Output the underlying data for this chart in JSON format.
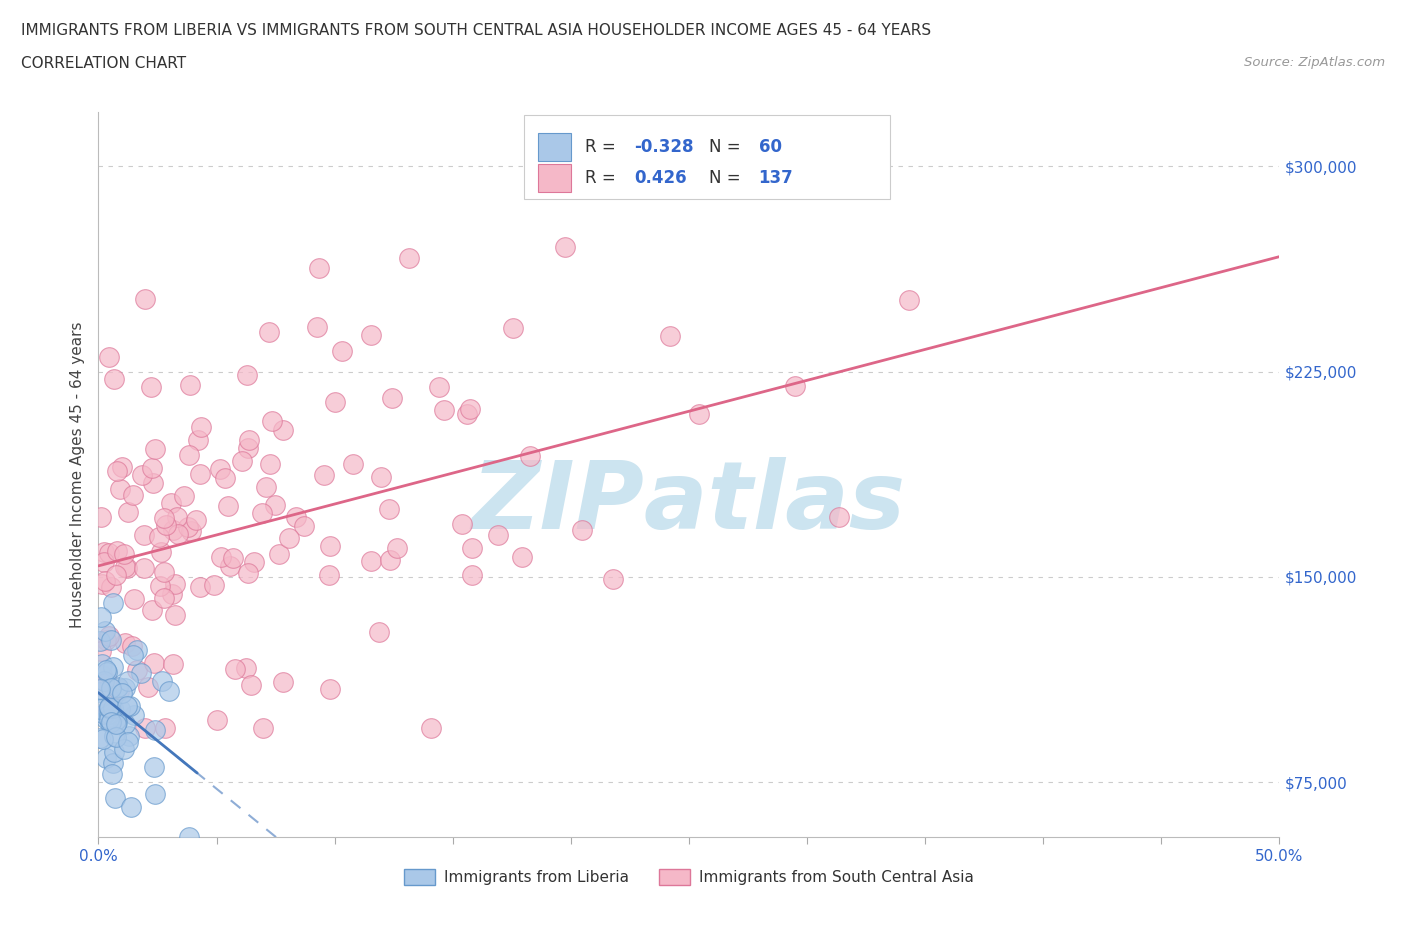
{
  "title_line1": "IMMIGRANTS FROM LIBERIA VS IMMIGRANTS FROM SOUTH CENTRAL ASIA HOUSEHOLDER INCOME AGES 45 - 64 YEARS",
  "title_line2": "CORRELATION CHART",
  "source_text": "Source: ZipAtlas.com",
  "ylabel": "Householder Income Ages 45 - 64 years",
  "xlim": [
    0.0,
    0.5
  ],
  "ylim": [
    55000,
    320000
  ],
  "yticks": [
    75000,
    150000,
    225000,
    300000
  ],
  "ytick_labels": [
    "$75,000",
    "$150,000",
    "$225,000",
    "$300,000"
  ],
  "xticks": [
    0.0,
    0.05,
    0.1,
    0.15,
    0.2,
    0.25,
    0.3,
    0.35,
    0.4,
    0.45,
    0.5
  ],
  "xtick_labels": [
    "0.0%",
    "",
    "",
    "",
    "",
    "",
    "",
    "",
    "",
    "",
    "50.0%"
  ],
  "liberia_R": -0.328,
  "liberia_N": 60,
  "asia_R": 0.426,
  "asia_N": 137,
  "liberia_color": "#aac8e8",
  "liberia_edge_color": "#6699cc",
  "asia_color": "#f5b8c8",
  "asia_edge_color": "#dd7799",
  "liberia_line_color": "#4477bb",
  "asia_line_color": "#dd6688",
  "watermark_color": "#cce4f0",
  "grid_color": "#cccccc",
  "legend_R1": "R = -0.328",
  "legend_N1": "N =  60",
  "legend_R2": "R =  0.426",
  "legend_N2": "N = 137",
  "liberia_label": "Immigrants from Liberia",
  "asia_label": "Immigrants from South Central Asia"
}
